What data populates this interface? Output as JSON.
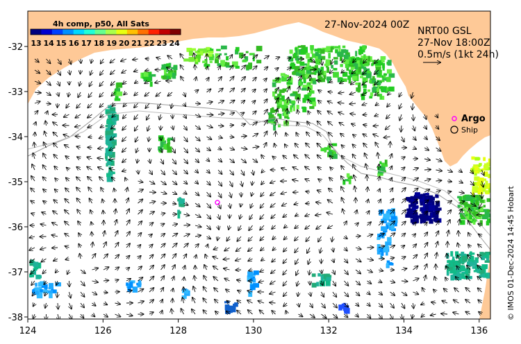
{
  "header": {
    "product_title": "4h comp, p50, All Sats",
    "date_label": "27-Nov-2024 00Z"
  },
  "colorbar": {
    "labels": [
      "13",
      "14",
      "15",
      "16",
      "17",
      "18",
      "19",
      "20",
      "21",
      "22",
      "23",
      "24"
    ],
    "colors": [
      "#00007f",
      "#0000d0",
      "#0040ff",
      "#0090ff",
      "#00d8ff",
      "#20ffd8",
      "#66ff90",
      "#aaff4c",
      "#e8ff10",
      "#ffc000",
      "#ff7000",
      "#ff2000",
      "#c00000",
      "#7f0000"
    ]
  },
  "current_info": {
    "line1": "NRT00 GSL",
    "line2": "27-Nov 18:00Z",
    "line3": "0.5m/s (1kt 24h)"
  },
  "legend": {
    "argo_label": "Argo",
    "ship_label": "Ship"
  },
  "credit": "© IMOS 01-Dec-2024 14:45 Hobart",
  "axes": {
    "x_ticks": [
      "124",
      "126",
      "128",
      "130",
      "132",
      "134",
      "136"
    ],
    "y_ticks": [
      "-32",
      "-33",
      "-34",
      "-35",
      "-36",
      "-37",
      "-38"
    ]
  },
  "colors": {
    "land": "#fec997",
    "ocean": "#ffffff",
    "argo": "#ff00ff"
  }
}
